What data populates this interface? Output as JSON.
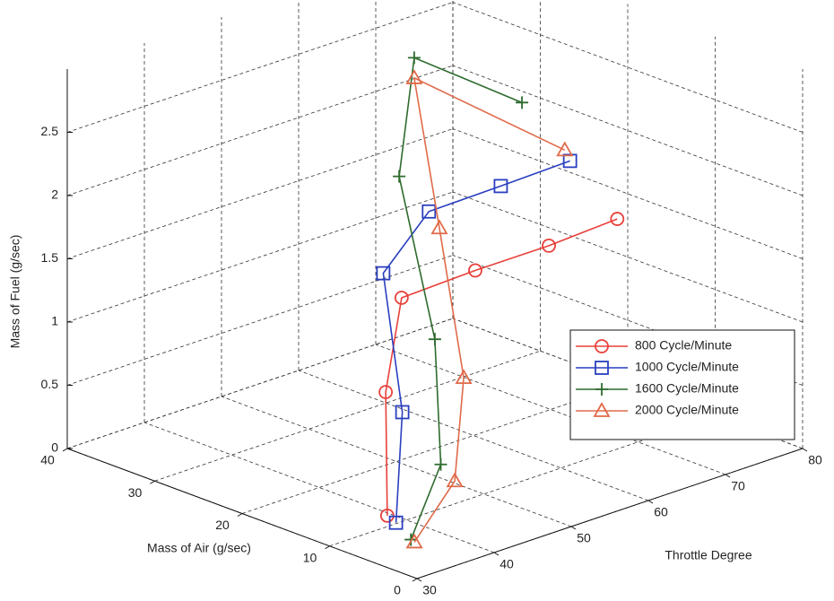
{
  "chart_data": {
    "type": "line3d",
    "xlabel": "Mass of Air (g/sec)",
    "ylabel": "Throttle Degree",
    "zlabel": "Mass of Fuel (g/sec)",
    "xlim": [
      0,
      40
    ],
    "xticks": [
      0,
      10,
      20,
      30,
      40
    ],
    "ylim": [
      30,
      80
    ],
    "yticks": [
      30,
      40,
      50,
      60,
      70,
      80
    ],
    "zlim": [
      0,
      3
    ],
    "zticks": [
      0,
      0.5,
      1,
      1.5,
      2,
      2.5
    ],
    "grid": true,
    "legend_position": "east",
    "series": [
      {
        "name": "800 Cycle/Minute",
        "color": "#e8403a",
        "marker": "circle",
        "x": [
          3.4,
          12.4,
          19.4,
          19.8,
          20.2,
          21.2
        ],
        "y": [
          30,
          40,
          50,
          60,
          70,
          80
        ],
        "z": [
          0.41,
          0.95,
          1.31,
          1.31,
          1.29,
          1.27
        ]
      },
      {
        "name": "1000 Cycle/Minute",
        "color": "#2a3fbf",
        "marker": "square",
        "x": [
          2.4,
          10.5,
          21.5,
          25.1,
          25.7,
          26.6
        ],
        "y": [
          30,
          40,
          50,
          60,
          70,
          80
        ],
        "z": [
          0.38,
          0.84,
          1.45,
          1.64,
          1.62,
          1.59
        ]
      },
      {
        "name": "1600 Cycle/Minute",
        "color": "#2e6b2e",
        "marker": "plus",
        "x": [
          0.7,
          6.1,
          15.6,
          28.5,
          35.6,
          32.1
        ],
        "y": [
          30,
          40,
          50,
          60,
          70,
          80
        ],
        "z": [
          0.29,
          0.54,
          1.08,
          1.83,
          2.38,
          1.91
        ]
      },
      {
        "name": "2000 Cycle/Minute",
        "color": "#e06a4a",
        "marker": "triangle",
        "x": [
          0.3,
          4.5,
          12.3,
          23.9,
          35.6,
          27.2
        ],
        "y": [
          30,
          40,
          50,
          60,
          70,
          80
        ],
        "z": [
          0.28,
          0.45,
          0.86,
          1.54,
          2.22,
          1.66
        ]
      }
    ]
  }
}
